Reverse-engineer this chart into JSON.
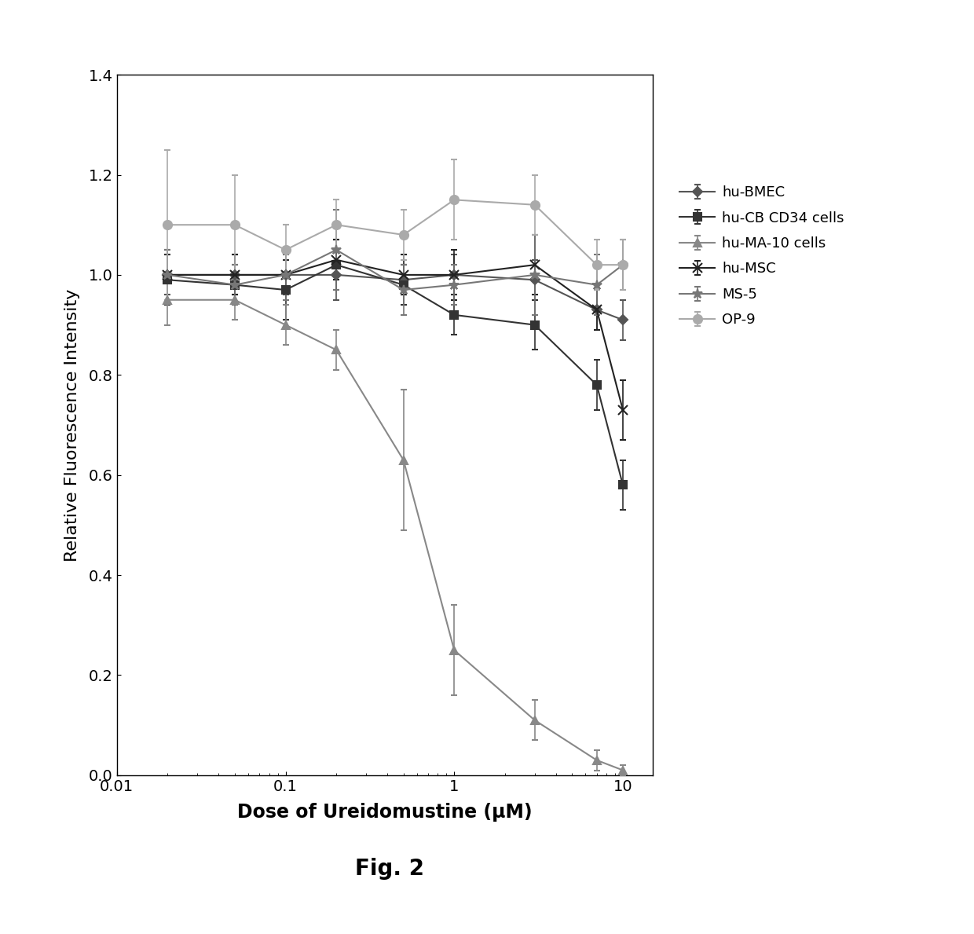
{
  "title": "",
  "xlabel": "Dose of Ureidomustine (μM)",
  "ylabel": "Relative Fluorescence Intensity",
  "fig_caption": "Fig. 2",
  "xlim": [
    0.01,
    15
  ],
  "ylim": [
    0,
    1.4
  ],
  "yticks": [
    0,
    0.2,
    0.4,
    0.6,
    0.8,
    1.0,
    1.2,
    1.4
  ],
  "xticks": [
    0.01,
    0.1,
    1,
    10
  ],
  "xtick_labels": [
    "0.01",
    "0.1",
    "1",
    "10"
  ],
  "series": [
    {
      "label": "hu-BMEC",
      "color": "#555555",
      "marker": "D",
      "markersize": 6,
      "linewidth": 1.5,
      "x": [
        0.02,
        0.05,
        0.1,
        0.2,
        0.5,
        1.0,
        3.0,
        7.0,
        10.0
      ],
      "y": [
        1.0,
        1.0,
        1.0,
        1.0,
        0.99,
        1.0,
        0.99,
        0.93,
        0.91
      ],
      "yerr": [
        0.04,
        0.04,
        0.04,
        0.05,
        0.03,
        0.04,
        0.04,
        0.04,
        0.04
      ]
    },
    {
      "label": "hu-CB CD34 cells",
      "color": "#333333",
      "marker": "s",
      "markersize": 7,
      "linewidth": 1.5,
      "x": [
        0.02,
        0.05,
        0.1,
        0.2,
        0.5,
        1.0,
        3.0,
        7.0,
        10.0
      ],
      "y": [
        0.99,
        0.98,
        0.97,
        1.02,
        0.98,
        0.92,
        0.9,
        0.78,
        0.58
      ],
      "yerr": [
        0.05,
        0.04,
        0.06,
        0.05,
        0.04,
        0.04,
        0.05,
        0.05,
        0.05
      ]
    },
    {
      "label": "hu-MA-10 cells",
      "color": "#888888",
      "marker": "^",
      "markersize": 7,
      "linewidth": 1.5,
      "x": [
        0.02,
        0.05,
        0.1,
        0.2,
        0.5,
        1.0,
        3.0,
        7.0,
        10.0
      ],
      "y": [
        0.95,
        0.95,
        0.9,
        0.85,
        0.63,
        0.25,
        0.11,
        0.03,
        0.01
      ],
      "yerr": [
        0.05,
        0.04,
        0.04,
        0.04,
        0.14,
        0.09,
        0.04,
        0.02,
        0.01
      ]
    },
    {
      "label": "hu-MSC",
      "color": "#222222",
      "marker": "x",
      "markersize": 9,
      "linewidth": 1.5,
      "x": [
        0.02,
        0.05,
        0.1,
        0.2,
        0.5,
        1.0,
        3.0,
        7.0,
        10.0
      ],
      "y": [
        1.0,
        1.0,
        1.0,
        1.03,
        1.0,
        1.0,
        1.02,
        0.93,
        0.73
      ],
      "yerr": [
        0.05,
        0.04,
        0.05,
        0.04,
        0.04,
        0.05,
        0.06,
        0.04,
        0.06
      ]
    },
    {
      "label": "MS-5",
      "color": "#777777",
      "marker": "*",
      "markersize": 9,
      "linewidth": 1.5,
      "x": [
        0.02,
        0.05,
        0.1,
        0.2,
        0.5,
        1.0,
        3.0,
        7.0,
        10.0
      ],
      "y": [
        1.0,
        0.98,
        1.0,
        1.05,
        0.97,
        0.98,
        1.0,
        0.98,
        1.02
      ],
      "yerr": [
        0.05,
        0.04,
        0.05,
        0.08,
        0.05,
        0.04,
        0.08,
        0.06,
        0.05
      ]
    },
    {
      "label": "OP-9",
      "color": "#aaaaaa",
      "marker": "o",
      "markersize": 8,
      "linewidth": 1.5,
      "x": [
        0.02,
        0.05,
        0.1,
        0.2,
        0.5,
        1.0,
        3.0,
        7.0,
        10.0
      ],
      "y": [
        1.1,
        1.1,
        1.05,
        1.1,
        1.08,
        1.15,
        1.14,
        1.02,
        1.02
      ],
      "yerr": [
        0.15,
        0.1,
        0.05,
        0.05,
        0.05,
        0.08,
        0.06,
        0.05,
        0.05
      ]
    }
  ],
  "background_color": "#ffffff",
  "font_color": "#000000",
  "legend_fontsize": 13,
  "axis_label_fontsize": 17,
  "tick_fontsize": 14,
  "caption_fontsize": 20
}
